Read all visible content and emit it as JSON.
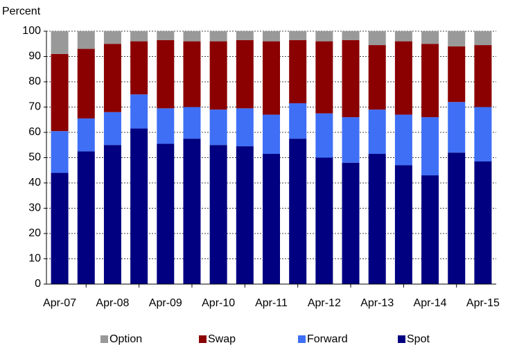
{
  "chart_data": {
    "type": "stacked_bar",
    "y_label": "Percent",
    "categories": [
      "Apr-07",
      null,
      "Apr-08",
      null,
      "Apr-09",
      null,
      "Apr-10",
      null,
      "Apr-11",
      null,
      "Apr-12",
      null,
      "Apr-13",
      null,
      "Apr-14",
      null,
      "Apr-15"
    ],
    "series": [
      {
        "name": "Spot",
        "color": "#000080",
        "values": [
          44,
          52.5,
          55,
          61.5,
          55.5,
          57.5,
          55,
          54.5,
          51.5,
          57.5,
          50,
          48,
          51.5,
          47,
          43,
          52,
          48.5
        ]
      },
      {
        "name": "Forward",
        "color": "#3f6ff5",
        "values": [
          16.5,
          13,
          13,
          13.5,
          14,
          12.5,
          14,
          15,
          15.5,
          14,
          17.5,
          18,
          17.5,
          20,
          23,
          20,
          21.5
        ]
      },
      {
        "name": "Swap",
        "color": "#8b0000",
        "values": [
          30.5,
          27.5,
          27,
          21,
          27,
          26,
          27,
          27,
          29,
          25,
          28.5,
          30.5,
          25.5,
          29,
          29,
          22,
          24.5
        ]
      },
      {
        "name": "Option",
        "color": "#999999",
        "values": [
          9,
          7,
          5,
          4,
          3.5,
          4,
          4,
          3.5,
          4,
          3.5,
          4,
          3.5,
          5.5,
          4,
          5,
          6,
          5.5
        ]
      }
    ],
    "ylim": [
      0,
      100
    ],
    "yticks": [
      0,
      10,
      20,
      30,
      40,
      50,
      60,
      70,
      80,
      90,
      100
    ],
    "grid": true,
    "legend": "bottom"
  }
}
